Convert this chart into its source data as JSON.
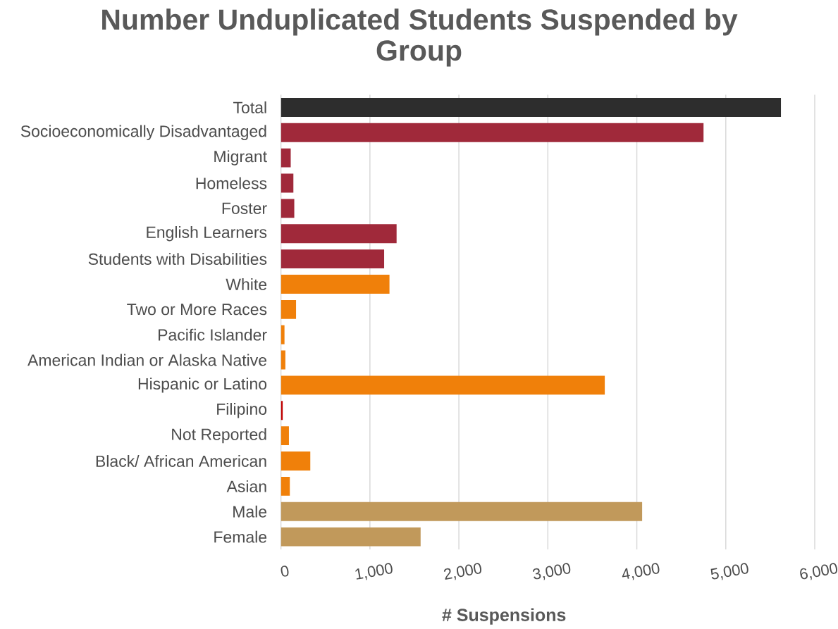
{
  "chart_data": {
    "type": "bar",
    "orientation": "horizontal",
    "title": "Number Unduplicated Students Suspended by Group",
    "xlabel": "# Suspensions",
    "categories": [
      "Total",
      "Socioeconomically Disadvantaged",
      "Migrant",
      "Homeless",
      "Foster",
      "English Learners",
      "Students with Disabilities",
      "White",
      "Two or More Races",
      "Pacific Islander",
      "American Indian or Alaska Native",
      "Hispanic or Latino",
      "Filipino",
      "Not Reported",
      "Black/ African American",
      "Asian",
      "Male",
      "Female"
    ],
    "values": [
      5620,
      4750,
      110,
      140,
      150,
      1300,
      1160,
      1220,
      170,
      40,
      50,
      3640,
      20,
      90,
      330,
      100,
      4060,
      1570
    ],
    "colors": [
      "#2d2d2d",
      "#a0293a",
      "#a0293a",
      "#a0293a",
      "#a0293a",
      "#a0293a",
      "#a0293a",
      "#f0800a",
      "#f0800a",
      "#f0800a",
      "#f0800a",
      "#f0800a",
      "#c00000",
      "#f0800a",
      "#f0800a",
      "#f0800a",
      "#c1995b",
      "#c1995b"
    ],
    "xlim": [
      0,
      6000
    ],
    "xticks": [
      0,
      {
        "value": 1000,
        "label": "1,000"
      },
      {
        "value": 2000,
        "label": "2,000"
      },
      {
        "value": 3000,
        "label": "3,000"
      },
      {
        "value": 4000,
        "label": "4,000"
      },
      {
        "value": 5000,
        "label": "5,000"
      },
      {
        "value": 6000,
        "label": "6,000"
      }
    ],
    "grid": "x"
  }
}
